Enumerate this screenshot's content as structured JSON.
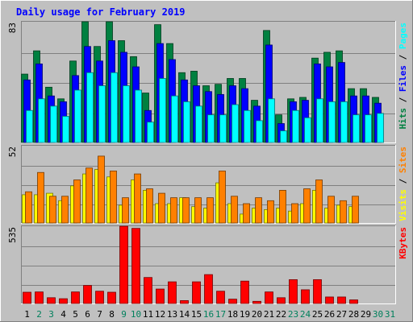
{
  "chart_data": {
    "type": "bar",
    "title": "Daily usage for February 2019",
    "categories": [
      "1",
      "2",
      "3",
      "4",
      "5",
      "6",
      "7",
      "8",
      "9",
      "10",
      "11",
      "12",
      "13",
      "14",
      "15",
      "16",
      "17",
      "18",
      "19",
      "20",
      "21",
      "22",
      "23",
      "24",
      "25",
      "26",
      "27",
      "28",
      "29",
      "30",
      "31"
    ],
    "weekend_days": [
      "2",
      "3",
      "9",
      "10",
      "16",
      "17",
      "23",
      "24",
      "30",
      "31"
    ],
    "panels": [
      {
        "name": "hits-files-pages",
        "ymax_label": "83",
        "ymax": 83,
        "right_labels": [
          "Pages",
          "Files",
          "Hits"
        ],
        "series": [
          {
            "name": "Hits",
            "color": "#008040",
            "values": [
              47,
              63,
              38,
              30,
              56,
              83,
              66,
              83,
              70,
              59,
              34,
              81,
              68,
              48,
              49,
              39,
              40,
              44,
              44,
              29,
              77,
              19,
              30,
              31,
              58,
              62,
              63,
              37,
              37,
              31,
              0
            ]
          },
          {
            "name": "Files",
            "color": "#0000ff",
            "values": [
              43,
              54,
              32,
              28,
              46,
              66,
              56,
              70,
              62,
              52,
              22,
              68,
              57,
              43,
              39,
              35,
              33,
              39,
              37,
              25,
              67,
              13,
              28,
              29,
              54,
              52,
              55,
              32,
              32,
              27,
              0
            ]
          },
          {
            "name": "Pages",
            "color": "#00ffff",
            "values": [
              22,
              30,
              25,
              18,
              36,
              48,
              39,
              48,
              39,
              36,
              14,
              44,
              32,
              28,
              25,
              19,
              19,
              26,
              22,
              15,
              30,
              8,
              22,
              17,
              30,
              28,
              28,
              19,
              19,
              20,
              0
            ]
          }
        ]
      },
      {
        "name": "visits-sites",
        "ymax_label": "52",
        "ymax": 52,
        "right_labels": [
          "Sites",
          "Visits"
        ],
        "series": [
          {
            "name": "Visits",
            "color": "#ffff00",
            "values": [
              19,
              19,
              20,
              15,
              25,
              33,
              36,
              31,
              12,
              29,
              22,
              13,
              13,
              17,
              11,
              10,
              27,
              13,
              6,
              10,
              9,
              10,
              8,
              13,
              22,
              10,
              12,
              11,
              0,
              0,
              0
            ]
          },
          {
            "name": "Sites",
            "color": "#ff8000",
            "values": [
              21,
              34,
              18,
              18,
              29,
              37,
              45,
              35,
              17,
              33,
              23,
              20,
              17,
              17,
              17,
              17,
              35,
              18,
              13,
              17,
              15,
              22,
              13,
              23,
              29,
              18,
              15,
              18,
              0,
              0,
              0
            ]
          }
        ]
      },
      {
        "name": "kbytes",
        "ymax_label": "535",
        "ymax": 535,
        "right_labels": [
          "KBytes"
        ],
        "series": [
          {
            "name": "KBytes",
            "color": "#ff0000",
            "values": [
              78,
              80,
              40,
              33,
              80,
              125,
              85,
              78,
              535,
              520,
              180,
              100,
              150,
              20,
              150,
              200,
              85,
              30,
              155,
              15,
              80,
              40,
              165,
              95,
              165,
              45,
              45,
              25,
              0,
              0,
              0
            ]
          }
        ]
      }
    ]
  },
  "colors": {
    "background": "#c0c0c0",
    "title": "#0000ff",
    "weekday_label": "#000000",
    "weekend_label": "#00805c",
    "gridline": "#808080"
  }
}
